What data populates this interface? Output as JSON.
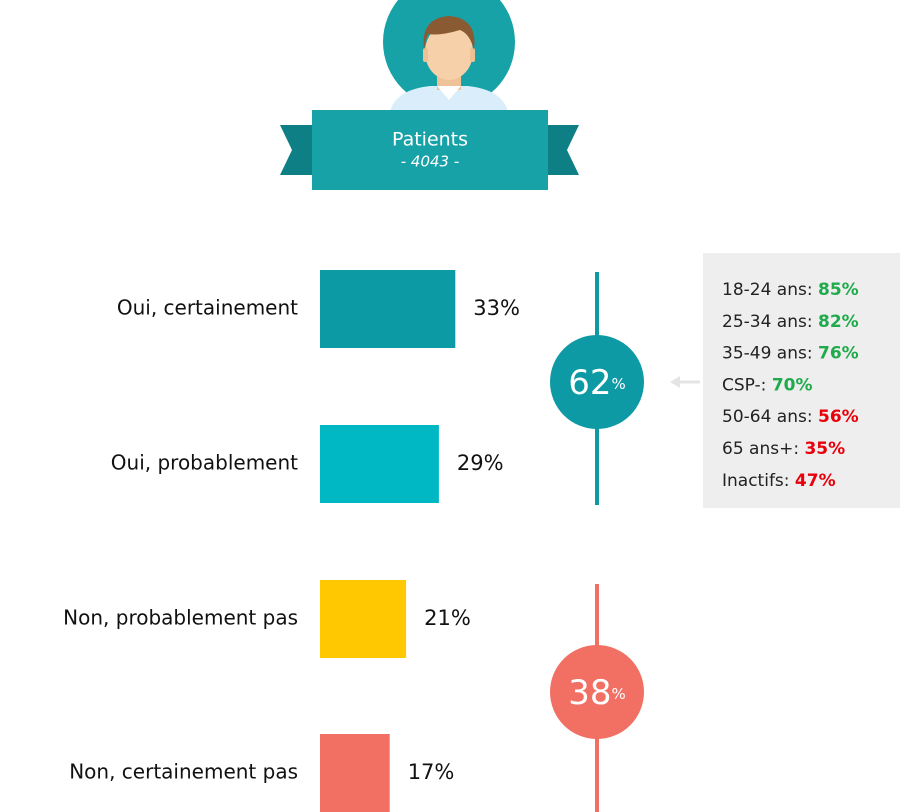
{
  "header": {
    "title": "Patients",
    "subtitle": "- 4043 -"
  },
  "chart_data": {
    "type": "bar",
    "orientation": "horizontal",
    "categories": [
      "Oui, certainement",
      "Oui, probablement",
      "Non, probablement pas",
      "Non, certainement pas"
    ],
    "values": [
      33,
      29,
      21,
      17
    ],
    "value_labels": [
      "33%",
      "29%",
      "21%",
      "17%"
    ],
    "colors": [
      "#0c9ba5",
      "#00b8c3",
      "#ffc800",
      "#f26f63"
    ],
    "groups": [
      {
        "value": 62,
        "unit": "%",
        "color": "#0e9aa5"
      },
      {
        "value": 38,
        "unit": "%",
        "color": "#f26f63"
      }
    ],
    "breakdown": [
      {
        "label": "18-24 ans:",
        "value": 85,
        "value_label": "85%",
        "color": "#1faa4b"
      },
      {
        "label": "25-34 ans:",
        "value": 82,
        "value_label": "82%",
        "color": "#1faa4b"
      },
      {
        "label": "35-49 ans:",
        "value": 76,
        "value_label": "76%",
        "color": "#1faa4b"
      },
      {
        "label": "CSP-:",
        "value": 70,
        "value_label": "70%",
        "color": "#1faa4b"
      },
      {
        "label": "50-64 ans:",
        "value": 56,
        "value_label": "56%",
        "color": "#e8000b"
      },
      {
        "label": "65 ans+:",
        "value": 35,
        "value_label": "35%",
        "color": "#e8000b"
      },
      {
        "label": "Inactifs:",
        "value": 47,
        "value_label": "47%",
        "color": "#e8000b"
      }
    ]
  }
}
